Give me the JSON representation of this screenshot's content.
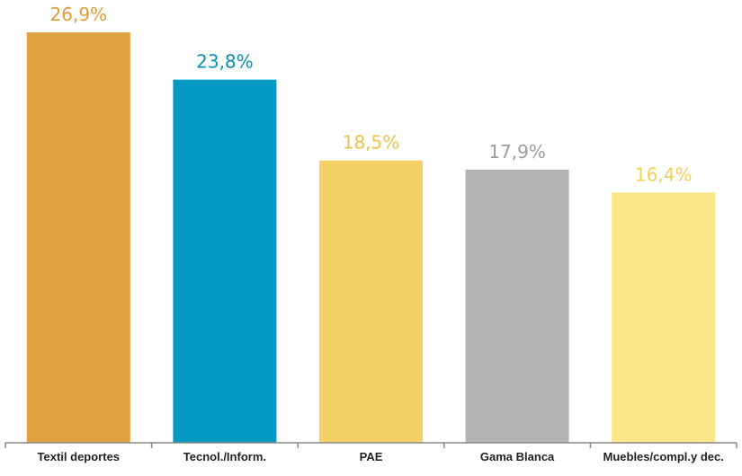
{
  "chart_data": {
    "type": "bar",
    "categories": [
      "Textil deportes",
      "Tecnol./Inform.",
      "PAE",
      "Gama Blanca",
      "Muebles/compl.y dec."
    ],
    "values": [
      26.9,
      23.8,
      18.5,
      17.9,
      16.4
    ],
    "value_labels": [
      "26,9%",
      "23,8%",
      "18,5%",
      "17,9%",
      "16,4%"
    ],
    "colors": [
      "#e0a33f",
      "#0399c3",
      "#f5d064",
      "#b3b3b3",
      "#fbe68a"
    ],
    "label_colors": [
      "#dba03b",
      "#0b8fb6",
      "#e9c24c",
      "#9d9d9d",
      "#f1d157"
    ],
    "ylim": [
      0,
      26.9
    ],
    "grid": false,
    "legend": "none"
  }
}
